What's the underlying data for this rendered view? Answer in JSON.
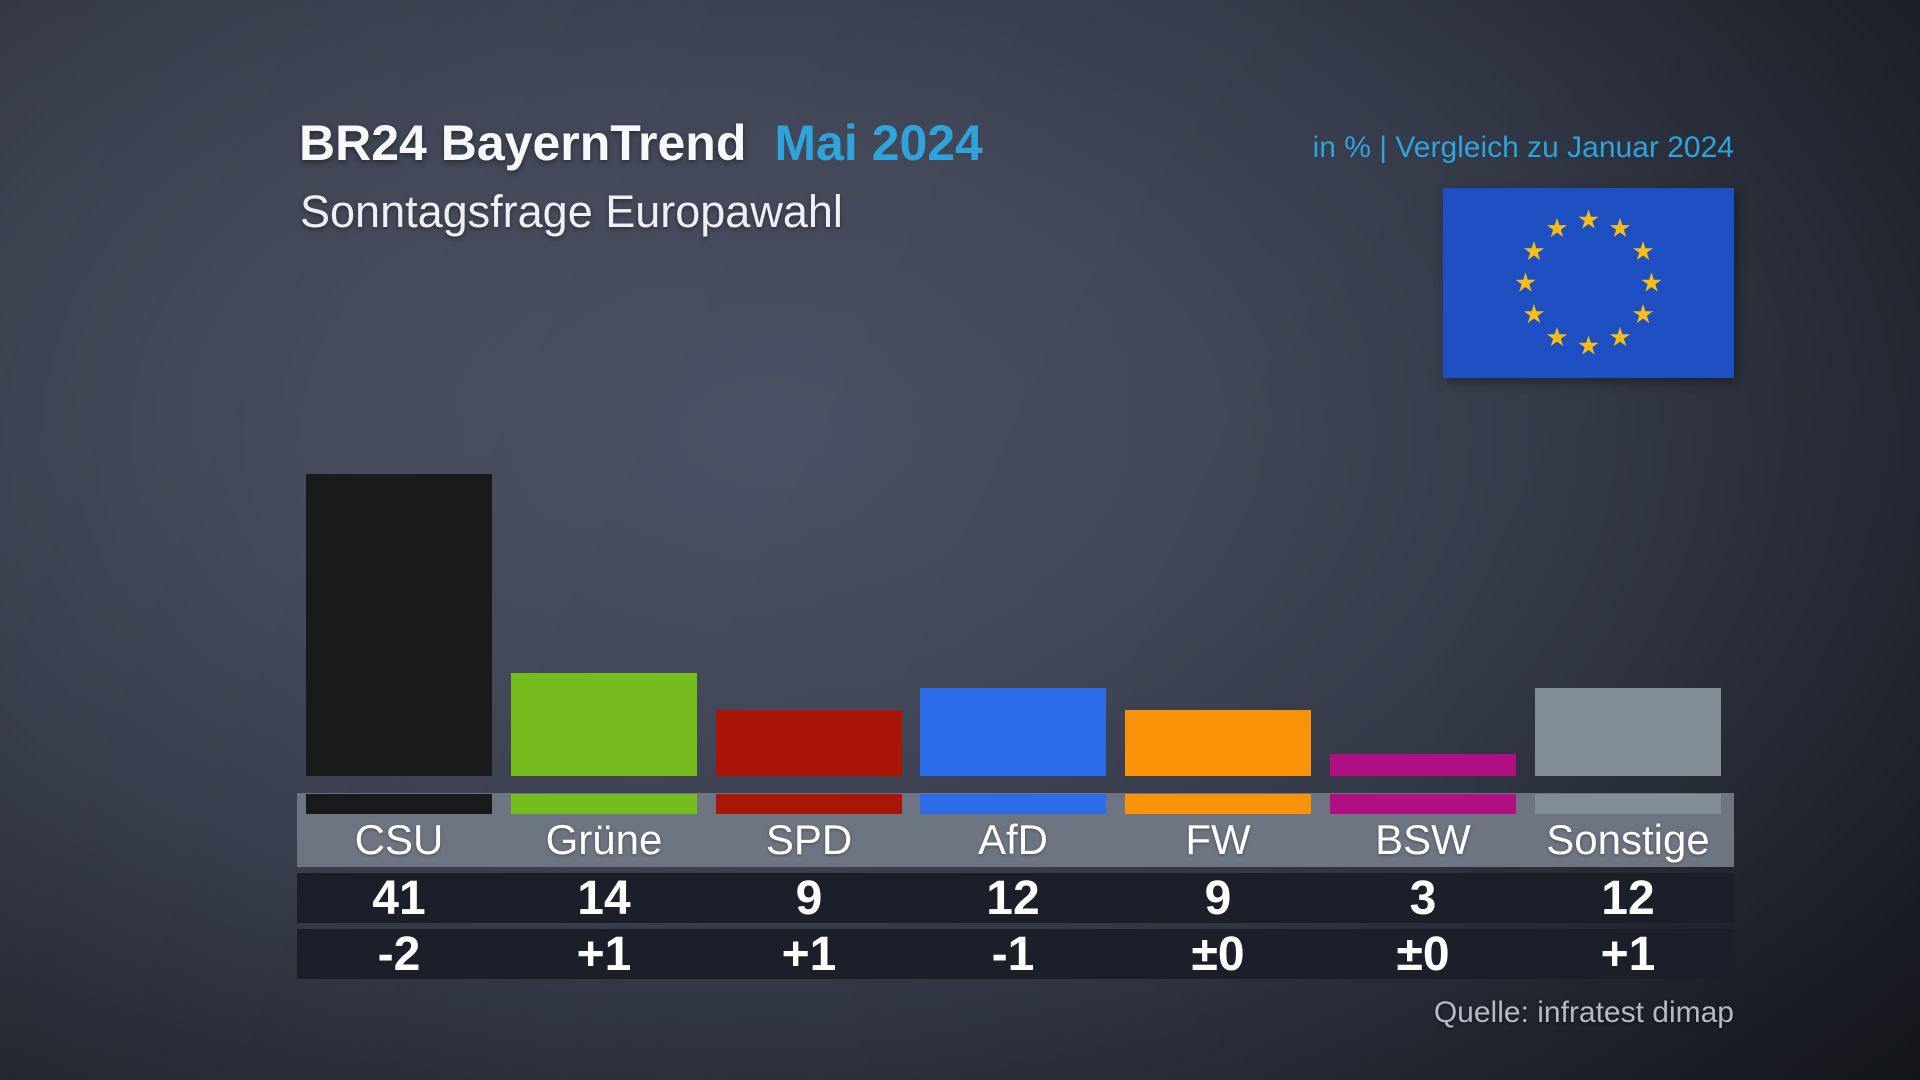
{
  "header": {
    "title": "BR24 BayernTrend",
    "edition": "Mai 2024",
    "subtitle": "Sonntagsfrage Europawahl",
    "note": "in % | Vergleich zu Januar 2024"
  },
  "source": "Quelle: infratest dimap",
  "flag": {
    "label": "eu-flag",
    "field_color": "#1e50c4",
    "star_color": "#f6bd16",
    "star_count": 12
  },
  "ui_colors": {
    "accent_cyan": "#2fa3dc",
    "name_band": "#6e7582",
    "number_band": "#1a1f2a",
    "text_primary": "#ffffff",
    "source_text": "#b4bbc7"
  },
  "chart_data": {
    "type": "bar",
    "title": "BR24 BayernTrend Mai 2024 — Sonntagsfrage Europawahl",
    "unit": "%",
    "comparison": "Vergleich zu Januar 2024",
    "categories": [
      "CSU",
      "Grüne",
      "SPD",
      "AfD",
      "FW",
      "BSW",
      "Sonstige"
    ],
    "values": [
      41,
      14,
      9,
      12,
      9,
      3,
      12
    ],
    "changes": [
      "-2",
      "+1",
      "+1",
      "-1",
      "±0",
      "±0",
      "+1"
    ],
    "bar_colors": [
      "#191a1c",
      "#75bd1c",
      "#a91607",
      "#2d6cea",
      "#fa9307",
      "#b11085",
      "#828e97"
    ],
    "ylim": [
      0,
      45
    ],
    "grid": false,
    "legend": "none",
    "value_labels_position": "table-below"
  }
}
